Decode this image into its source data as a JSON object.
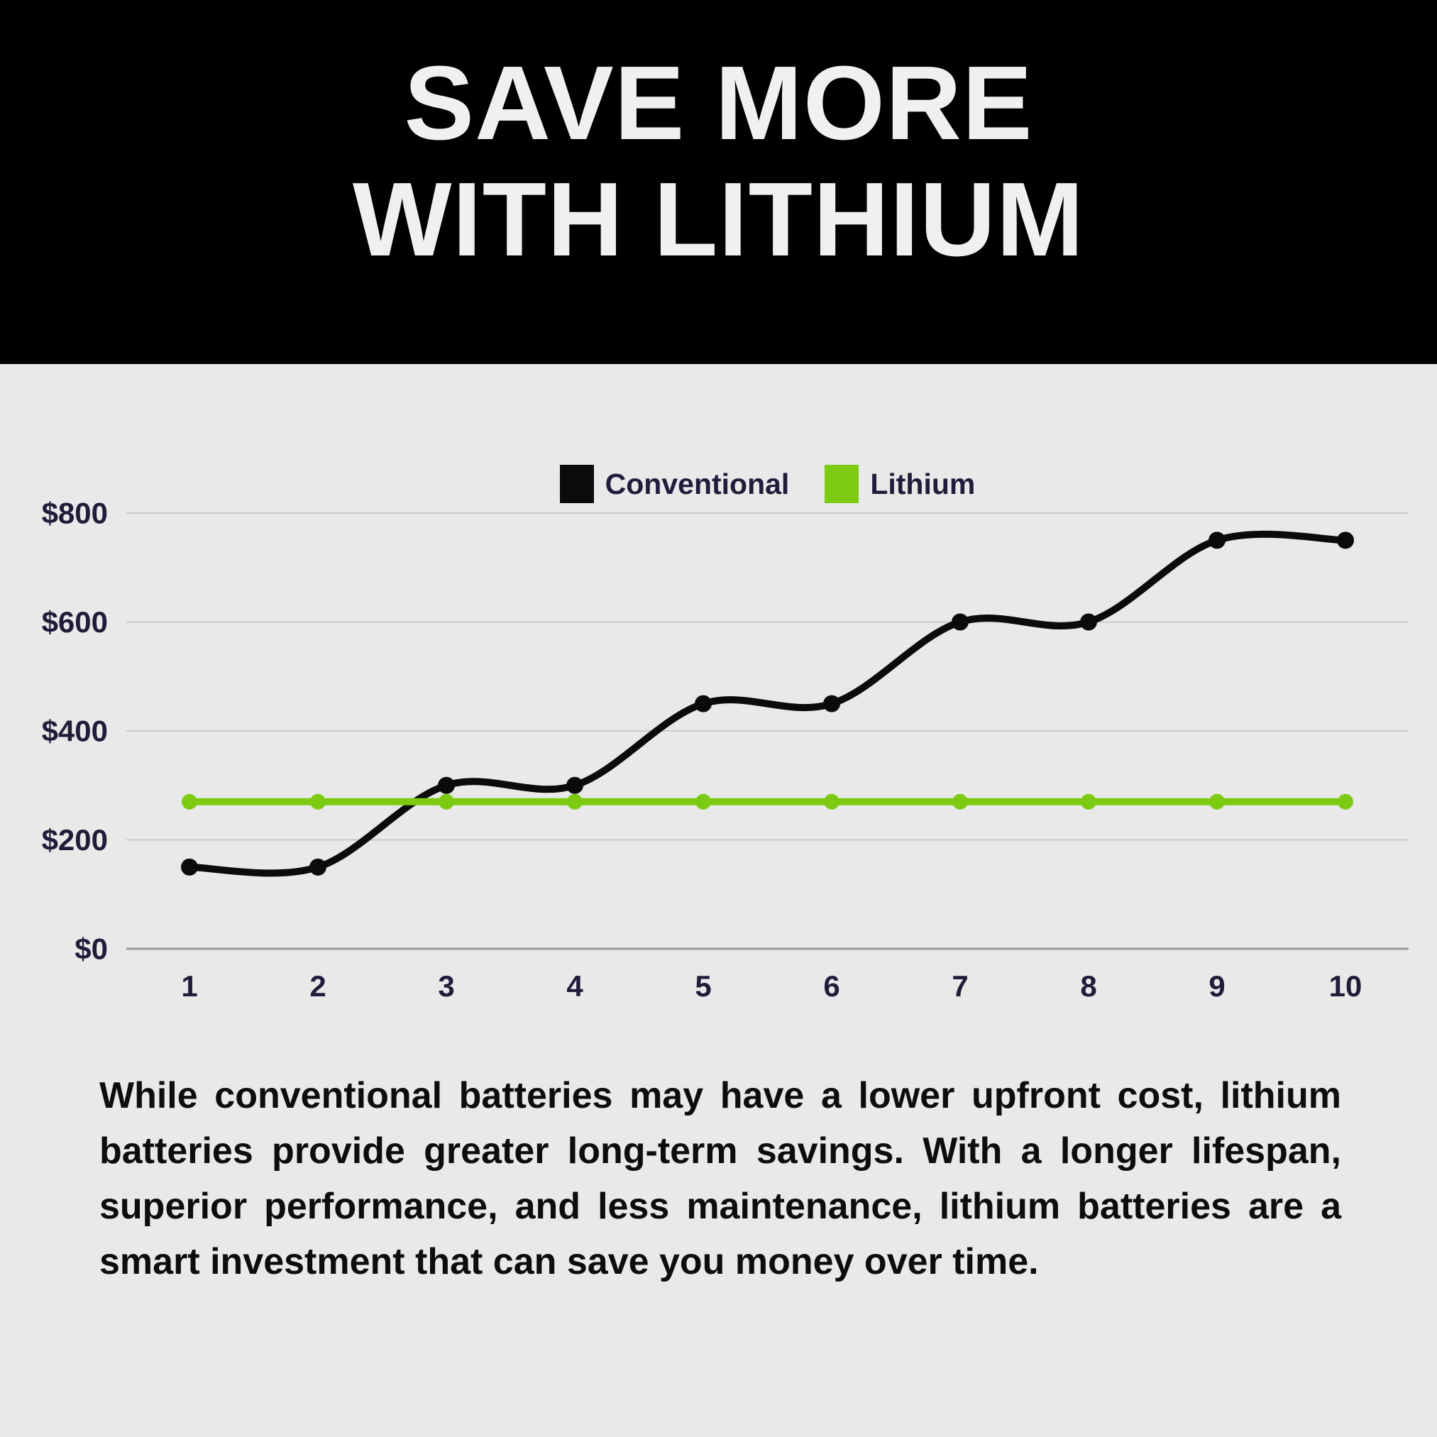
{
  "header": {
    "title_line1": "SAVE MORE",
    "title_line2": "WITH LITHIUM"
  },
  "chart_data": {
    "type": "line",
    "x": [
      1,
      2,
      3,
      4,
      5,
      6,
      7,
      8,
      9,
      10
    ],
    "series": [
      {
        "name": "Conventional",
        "color": "#0B0B0B",
        "values": [
          150,
          150,
          300,
          300,
          450,
          450,
          600,
          600,
          750,
          750
        ]
      },
      {
        "name": "Lithium",
        "color": "#7CCB12",
        "values": [
          270,
          270,
          270,
          270,
          270,
          270,
          270,
          270,
          270,
          270
        ]
      }
    ],
    "y_ticks": [
      {
        "value": 0,
        "label": "$0"
      },
      {
        "value": 200,
        "label": "$200"
      },
      {
        "value": 400,
        "label": "$400"
      },
      {
        "value": 600,
        "label": "$600"
      },
      {
        "value": 800,
        "label": "$800"
      }
    ],
    "ylim": [
      0,
      800
    ],
    "grid": true,
    "legend_position": "top-center",
    "curve": "smooth-spline"
  },
  "paragraph": "While conventional batteries may have a lower upfront cost, lithium batteries provide greater long-term savings. With a longer lifespan, superior performance, and less maintenance, lithium batteries are a smart investment that can save you money over time.",
  "colors": {
    "page_background": "#E9E9E9",
    "header_background": "#000000",
    "title_text": "#F0F0F0",
    "axis_ink": "#201C3A",
    "body_text": "#0D0D0D",
    "gridline": "#CBCBCB",
    "baseline": "#9B9B9B",
    "conventional": "#0B0B0B",
    "lithium": "#7CCB12"
  }
}
